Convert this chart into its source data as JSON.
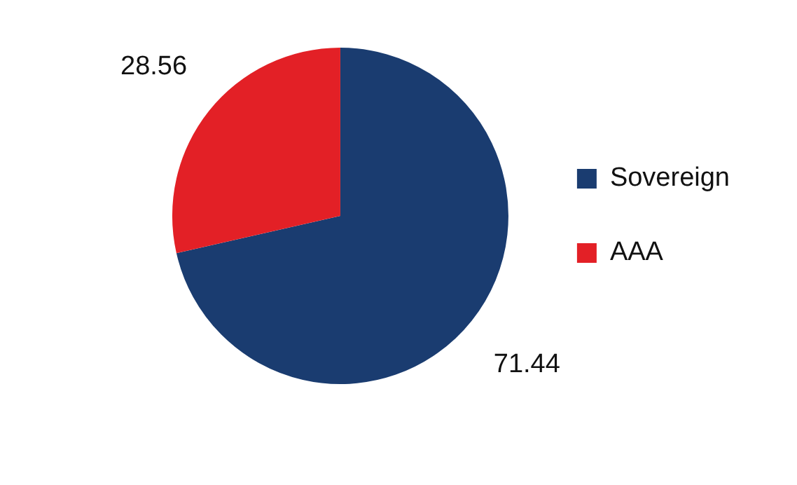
{
  "chart_data": {
    "type": "pie",
    "categories": [
      "Sovereign",
      "AAA"
    ],
    "values": [
      71.44,
      28.56
    ],
    "colors": [
      "#1a3c70",
      "#e32026"
    ],
    "data_labels": true,
    "legend": "right"
  }
}
